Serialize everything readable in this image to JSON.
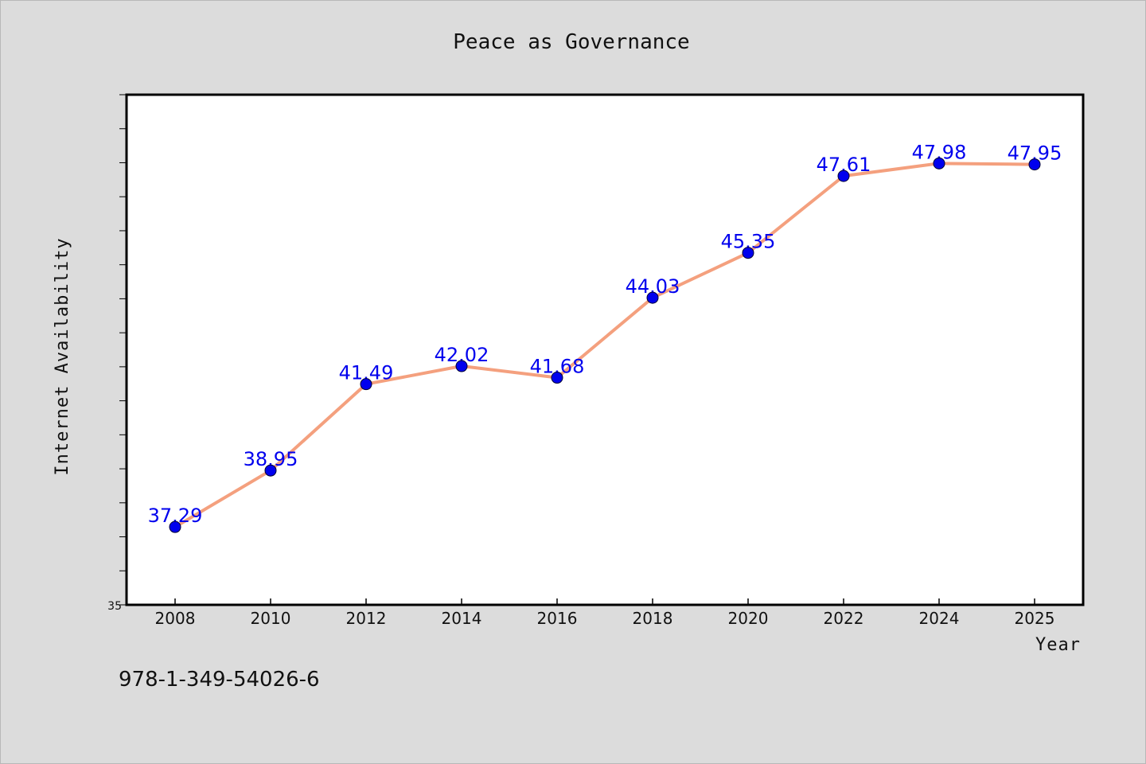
{
  "chart_data": {
    "type": "line",
    "title": "Peace as Governance",
    "xlabel": "Year",
    "ylabel": "Internet Availability",
    "categories": [
      "2008",
      "2010",
      "2012",
      "2014",
      "2016",
      "2018",
      "2020",
      "2022",
      "2024",
      "2025"
    ],
    "series": [
      {
        "values": [
          37.29,
          38.95,
          41.49,
          42.02,
          41.68,
          44.03,
          45.35,
          47.61,
          47.98,
          47.95
        ],
        "labels": [
          "37.29",
          "38.95",
          "41.49",
          "42.02",
          "41.68",
          "44.03",
          "45.35",
          "47.61",
          "47.98",
          "47.95"
        ]
      }
    ],
    "ylim": [
      35,
      50
    ],
    "y_tick_labels": [
      "35"
    ],
    "grid": false,
    "line_color": "#f4a07e",
    "marker_color": "#0000ee",
    "label_color": "#0000ee"
  },
  "footer": {
    "isbn": "978-1-349-54026-6"
  }
}
